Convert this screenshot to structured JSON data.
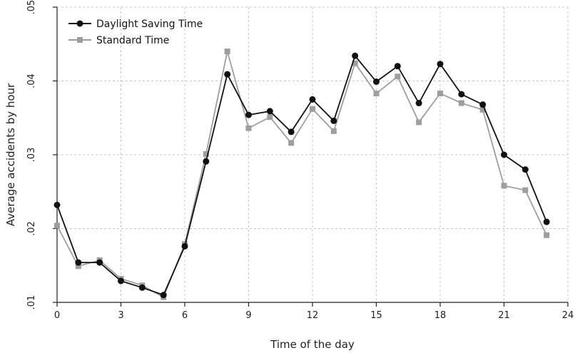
{
  "chart_data": {
    "type": "line",
    "xlabel": "Time of the day",
    "ylabel": "Average accidents by hour",
    "xlim": [
      0,
      24
    ],
    "ylim": [
      0.01,
      0.05
    ],
    "x_ticks": [
      0,
      3,
      6,
      9,
      12,
      15,
      18,
      21,
      24
    ],
    "x_tick_labels": [
      "0",
      "3",
      "6",
      "9",
      "12",
      "15",
      "18",
      "21",
      "24"
    ],
    "y_ticks": [
      0.01,
      0.02,
      0.03,
      0.04,
      0.05
    ],
    "y_tick_labels": [
      ".01",
      ".02",
      ".03",
      ".04",
      ".05"
    ],
    "grid": true,
    "legend_position": "top-left",
    "x": [
      0,
      1,
      2,
      3,
      4,
      5,
      6,
      7,
      8,
      9,
      10,
      11,
      12,
      13,
      14,
      15,
      16,
      17,
      18,
      19,
      20,
      21,
      22,
      23
    ],
    "series": [
      {
        "name": "Daylight Saving Time",
        "color": "#111111",
        "marker": "circle",
        "values": [
          0.0232,
          0.0154,
          0.0154,
          0.0129,
          0.012,
          0.011,
          0.0176,
          0.0291,
          0.0409,
          0.0354,
          0.0359,
          0.0331,
          0.0375,
          0.0346,
          0.0434,
          0.0399,
          0.042,
          0.037,
          0.0423,
          0.0382,
          0.0368,
          0.03,
          0.028,
          0.0209
        ]
      },
      {
        "name": "Standard Time",
        "color": "#9e9e9e",
        "marker": "square",
        "values": [
          0.0204,
          0.0149,
          0.0157,
          0.0132,
          0.0123,
          0.0107,
          0.0179,
          0.0301,
          0.044,
          0.0336,
          0.0351,
          0.0316,
          0.0362,
          0.0332,
          0.0424,
          0.0383,
          0.0406,
          0.0344,
          0.0383,
          0.037,
          0.0361,
          0.0258,
          0.0252,
          0.0191
        ]
      }
    ]
  }
}
